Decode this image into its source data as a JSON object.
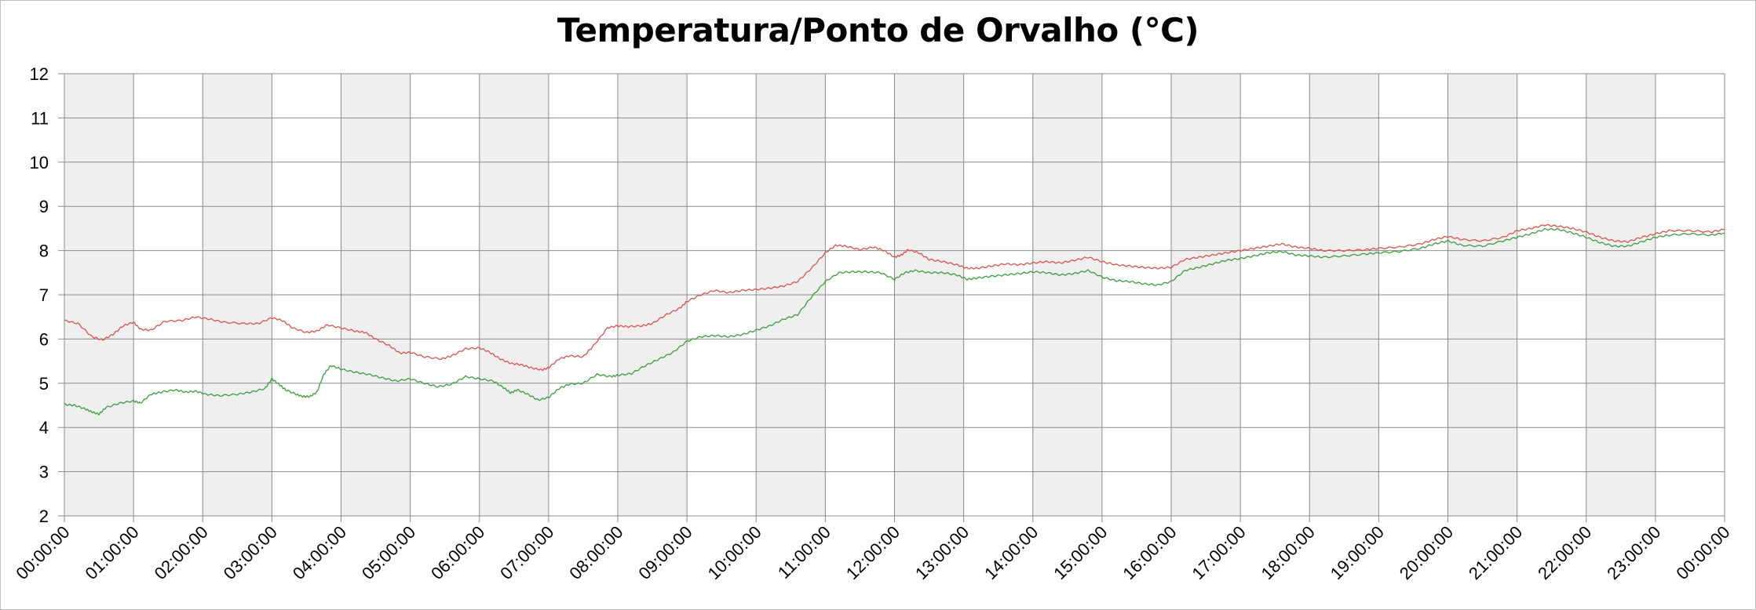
{
  "chart_data": {
    "type": "line",
    "title": "Temperatura/Ponto de Orvalho (°C)",
    "xlabel": "",
    "ylabel": "",
    "ylim": [
      2,
      12
    ],
    "yticks": [
      2,
      3,
      4,
      5,
      6,
      7,
      8,
      9,
      10,
      11,
      12
    ],
    "xticks": [
      "00:00:00",
      "01:00:00",
      "02:00:00",
      "03:00:00",
      "04:00:00",
      "05:00:00",
      "06:00:00",
      "07:00:00",
      "08:00:00",
      "09:00:00",
      "10:00:00",
      "11:00:00",
      "12:00:00",
      "13:00:00",
      "14:00:00",
      "15:00:00",
      "16:00:00",
      "17:00:00",
      "18:00:00",
      "19:00:00",
      "20:00:00",
      "21:00:00",
      "22:00:00",
      "23:00:00",
      "00:00:00"
    ],
    "grid": true,
    "alternating_bands": true,
    "band_color": "#efefef",
    "x_unit": "hours",
    "series": [
      {
        "color": "#d9534f",
        "points": [
          [
            0,
            6.42
          ],
          [
            0.2,
            6.35
          ],
          [
            0.4,
            6.05
          ],
          [
            0.55,
            5.98
          ],
          [
            0.7,
            6.1
          ],
          [
            0.85,
            6.3
          ],
          [
            1.0,
            6.38
          ],
          [
            1.1,
            6.22
          ],
          [
            1.25,
            6.2
          ],
          [
            1.45,
            6.4
          ],
          [
            1.7,
            6.42
          ],
          [
            1.9,
            6.5
          ],
          [
            2.1,
            6.45
          ],
          [
            2.3,
            6.38
          ],
          [
            2.6,
            6.35
          ],
          [
            2.8,
            6.35
          ],
          [
            3.0,
            6.48
          ],
          [
            3.15,
            6.42
          ],
          [
            3.3,
            6.25
          ],
          [
            3.5,
            6.15
          ],
          [
            3.65,
            6.18
          ],
          [
            3.8,
            6.32
          ],
          [
            4.0,
            6.25
          ],
          [
            4.2,
            6.18
          ],
          [
            4.35,
            6.15
          ],
          [
            4.5,
            6.0
          ],
          [
            4.7,
            5.85
          ],
          [
            4.85,
            5.68
          ],
          [
            5.0,
            5.7
          ],
          [
            5.2,
            5.6
          ],
          [
            5.45,
            5.55
          ],
          [
            5.6,
            5.62
          ],
          [
            5.8,
            5.78
          ],
          [
            6.0,
            5.8
          ],
          [
            6.15,
            5.7
          ],
          [
            6.3,
            5.55
          ],
          [
            6.45,
            5.45
          ],
          [
            6.6,
            5.42
          ],
          [
            6.75,
            5.35
          ],
          [
            6.9,
            5.3
          ],
          [
            7.0,
            5.35
          ],
          [
            7.15,
            5.55
          ],
          [
            7.3,
            5.62
          ],
          [
            7.5,
            5.6
          ],
          [
            7.65,
            5.85
          ],
          [
            7.85,
            6.25
          ],
          [
            8.0,
            6.3
          ],
          [
            8.15,
            6.28
          ],
          [
            8.35,
            6.3
          ],
          [
            8.5,
            6.35
          ],
          [
            8.7,
            6.55
          ],
          [
            8.9,
            6.7
          ],
          [
            9.0,
            6.85
          ],
          [
            9.2,
            7.0
          ],
          [
            9.4,
            7.1
          ],
          [
            9.6,
            7.05
          ],
          [
            9.8,
            7.1
          ],
          [
            10.0,
            7.12
          ],
          [
            10.2,
            7.15
          ],
          [
            10.4,
            7.2
          ],
          [
            10.6,
            7.3
          ],
          [
            10.8,
            7.6
          ],
          [
            11.0,
            7.95
          ],
          [
            11.15,
            8.12
          ],
          [
            11.3,
            8.1
          ],
          [
            11.5,
            8.02
          ],
          [
            11.7,
            8.08
          ],
          [
            11.85,
            8.0
          ],
          [
            12.0,
            7.85
          ],
          [
            12.1,
            7.9
          ],
          [
            12.2,
            8.02
          ],
          [
            12.35,
            7.95
          ],
          [
            12.5,
            7.8
          ],
          [
            12.7,
            7.75
          ],
          [
            12.9,
            7.68
          ],
          [
            13.05,
            7.6
          ],
          [
            13.2,
            7.6
          ],
          [
            13.4,
            7.65
          ],
          [
            13.6,
            7.7
          ],
          [
            13.8,
            7.68
          ],
          [
            14.0,
            7.72
          ],
          [
            14.2,
            7.75
          ],
          [
            14.4,
            7.72
          ],
          [
            14.6,
            7.78
          ],
          [
            14.8,
            7.85
          ],
          [
            15.0,
            7.75
          ],
          [
            15.2,
            7.68
          ],
          [
            15.4,
            7.65
          ],
          [
            15.6,
            7.62
          ],
          [
            15.8,
            7.6
          ],
          [
            16.0,
            7.62
          ],
          [
            16.2,
            7.8
          ],
          [
            16.4,
            7.85
          ],
          [
            16.6,
            7.9
          ],
          [
            16.8,
            7.95
          ],
          [
            17.0,
            8.0
          ],
          [
            17.2,
            8.05
          ],
          [
            17.4,
            8.1
          ],
          [
            17.6,
            8.15
          ],
          [
            17.8,
            8.08
          ],
          [
            18.0,
            8.05
          ],
          [
            18.2,
            8.0
          ],
          [
            18.5,
            8.0
          ],
          [
            18.8,
            8.02
          ],
          [
            19.0,
            8.05
          ],
          [
            19.3,
            8.08
          ],
          [
            19.6,
            8.15
          ],
          [
            19.8,
            8.25
          ],
          [
            20.0,
            8.32
          ],
          [
            20.2,
            8.25
          ],
          [
            20.5,
            8.22
          ],
          [
            20.8,
            8.3
          ],
          [
            21.0,
            8.45
          ],
          [
            21.2,
            8.5
          ],
          [
            21.4,
            8.58
          ],
          [
            21.6,
            8.55
          ],
          [
            21.8,
            8.5
          ],
          [
            22.0,
            8.42
          ],
          [
            22.2,
            8.3
          ],
          [
            22.4,
            8.22
          ],
          [
            22.6,
            8.2
          ],
          [
            22.8,
            8.3
          ],
          [
            23.0,
            8.38
          ],
          [
            23.2,
            8.45
          ],
          [
            23.5,
            8.45
          ],
          [
            23.8,
            8.42
          ],
          [
            24.0,
            8.48
          ]
        ]
      },
      {
        "color": "#3c9e3c",
        "points": [
          [
            0,
            4.52
          ],
          [
            0.15,
            4.5
          ],
          [
            0.3,
            4.42
          ],
          [
            0.4,
            4.35
          ],
          [
            0.5,
            4.3
          ],
          [
            0.6,
            4.45
          ],
          [
            0.8,
            4.55
          ],
          [
            1.0,
            4.6
          ],
          [
            1.1,
            4.55
          ],
          [
            1.25,
            4.75
          ],
          [
            1.4,
            4.8
          ],
          [
            1.6,
            4.85
          ],
          [
            1.75,
            4.8
          ],
          [
            1.9,
            4.82
          ],
          [
            2.05,
            4.75
          ],
          [
            2.25,
            4.72
          ],
          [
            2.5,
            4.75
          ],
          [
            2.7,
            4.8
          ],
          [
            2.9,
            4.88
          ],
          [
            3.0,
            5.1
          ],
          [
            3.1,
            4.98
          ],
          [
            3.2,
            4.85
          ],
          [
            3.35,
            4.75
          ],
          [
            3.45,
            4.7
          ],
          [
            3.55,
            4.7
          ],
          [
            3.65,
            4.8
          ],
          [
            3.75,
            5.2
          ],
          [
            3.85,
            5.4
          ],
          [
            4.0,
            5.32
          ],
          [
            4.2,
            5.25
          ],
          [
            4.4,
            5.2
          ],
          [
            4.6,
            5.12
          ],
          [
            4.8,
            5.05
          ],
          [
            5.0,
            5.1
          ],
          [
            5.2,
            5.0
          ],
          [
            5.4,
            4.92
          ],
          [
            5.6,
            4.98
          ],
          [
            5.8,
            5.15
          ],
          [
            6.0,
            5.1
          ],
          [
            6.2,
            5.05
          ],
          [
            6.35,
            4.9
          ],
          [
            6.45,
            4.78
          ],
          [
            6.55,
            4.85
          ],
          [
            6.7,
            4.75
          ],
          [
            6.85,
            4.62
          ],
          [
            7.0,
            4.68
          ],
          [
            7.15,
            4.88
          ],
          [
            7.3,
            4.98
          ],
          [
            7.5,
            5.0
          ],
          [
            7.7,
            5.2
          ],
          [
            7.9,
            5.15
          ],
          [
            8.0,
            5.18
          ],
          [
            8.2,
            5.22
          ],
          [
            8.4,
            5.4
          ],
          [
            8.6,
            5.55
          ],
          [
            8.8,
            5.7
          ],
          [
            9.0,
            5.95
          ],
          [
            9.2,
            6.05
          ],
          [
            9.4,
            6.08
          ],
          [
            9.6,
            6.05
          ],
          [
            9.8,
            6.1
          ],
          [
            10.0,
            6.2
          ],
          [
            10.2,
            6.3
          ],
          [
            10.4,
            6.45
          ],
          [
            10.6,
            6.55
          ],
          [
            10.8,
            6.95
          ],
          [
            11.0,
            7.3
          ],
          [
            11.2,
            7.5
          ],
          [
            11.4,
            7.52
          ],
          [
            11.6,
            7.52
          ],
          [
            11.8,
            7.5
          ],
          [
            12.0,
            7.35
          ],
          [
            12.15,
            7.5
          ],
          [
            12.3,
            7.55
          ],
          [
            12.5,
            7.5
          ],
          [
            12.7,
            7.5
          ],
          [
            12.9,
            7.45
          ],
          [
            13.05,
            7.35
          ],
          [
            13.2,
            7.38
          ],
          [
            13.4,
            7.42
          ],
          [
            13.6,
            7.45
          ],
          [
            13.8,
            7.48
          ],
          [
            14.0,
            7.52
          ],
          [
            14.2,
            7.5
          ],
          [
            14.4,
            7.45
          ],
          [
            14.6,
            7.48
          ],
          [
            14.8,
            7.55
          ],
          [
            15.0,
            7.4
          ],
          [
            15.2,
            7.32
          ],
          [
            15.4,
            7.3
          ],
          [
            15.6,
            7.25
          ],
          [
            15.8,
            7.22
          ],
          [
            16.0,
            7.3
          ],
          [
            16.2,
            7.55
          ],
          [
            16.4,
            7.62
          ],
          [
            16.6,
            7.7
          ],
          [
            16.8,
            7.78
          ],
          [
            17.0,
            7.82
          ],
          [
            17.2,
            7.88
          ],
          [
            17.4,
            7.95
          ],
          [
            17.6,
            7.98
          ],
          [
            17.8,
            7.9
          ],
          [
            18.0,
            7.88
          ],
          [
            18.2,
            7.85
          ],
          [
            18.5,
            7.88
          ],
          [
            18.8,
            7.92
          ],
          [
            19.0,
            7.95
          ],
          [
            19.3,
            7.98
          ],
          [
            19.6,
            8.05
          ],
          [
            19.8,
            8.15
          ],
          [
            20.0,
            8.22
          ],
          [
            20.2,
            8.12
          ],
          [
            20.5,
            8.1
          ],
          [
            20.8,
            8.22
          ],
          [
            21.0,
            8.3
          ],
          [
            21.2,
            8.38
          ],
          [
            21.4,
            8.48
          ],
          [
            21.6,
            8.48
          ],
          [
            21.8,
            8.4
          ],
          [
            22.0,
            8.3
          ],
          [
            22.2,
            8.18
          ],
          [
            22.4,
            8.1
          ],
          [
            22.6,
            8.1
          ],
          [
            22.8,
            8.2
          ],
          [
            23.0,
            8.3
          ],
          [
            23.2,
            8.35
          ],
          [
            23.5,
            8.38
          ],
          [
            23.8,
            8.35
          ],
          [
            24.0,
            8.4
          ]
        ]
      }
    ]
  }
}
